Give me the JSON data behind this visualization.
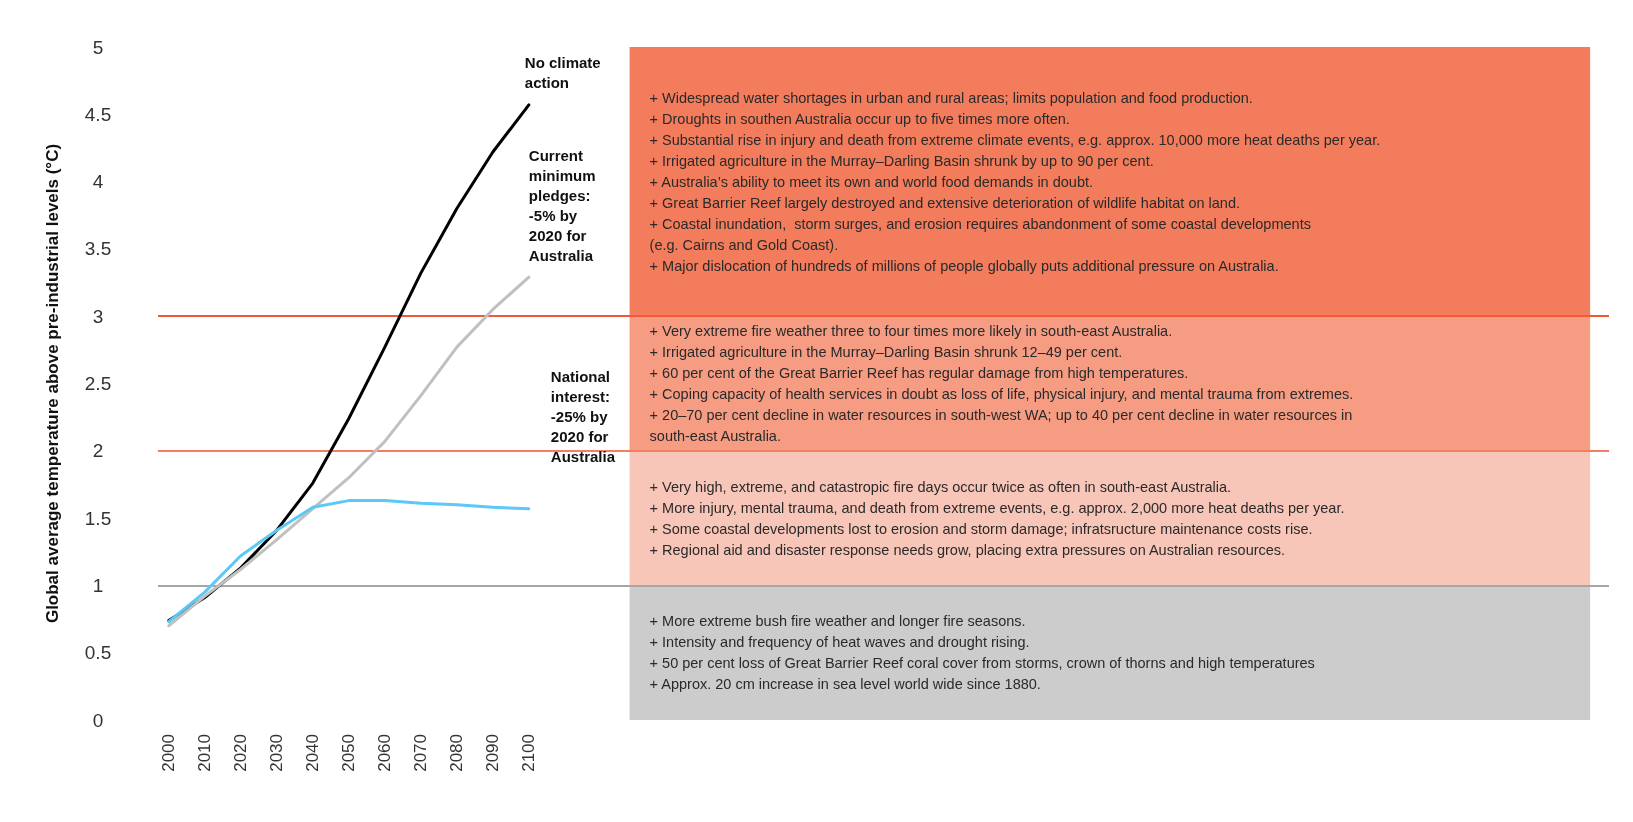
{
  "chart_data": {
    "type": "line",
    "ylabel": "Global average temperature above pre-industrial levels (°C)",
    "x": [
      2000,
      2010,
      2020,
      2030,
      2040,
      2050,
      2060,
      2070,
      2080,
      2090,
      2100
    ],
    "xlim": [
      1997,
      2400
    ],
    "xticks": [
      2000,
      2010,
      2020,
      2030,
      2040,
      2050,
      2060,
      2070,
      2080,
      2090,
      2100
    ],
    "ylim": [
      0,
      5
    ],
    "yticks": [
      0,
      0.5,
      1,
      1.5,
      2,
      2.5,
      3,
      3.5,
      4,
      4.5,
      5
    ],
    "grid": false,
    "marker": "none",
    "line_style": "solid",
    "series": [
      {
        "name": "No climate action",
        "color": "#000000",
        "values": [
          0.74,
          0.91,
          1.13,
          1.41,
          1.76,
          2.24,
          2.77,
          3.32,
          3.8,
          4.22,
          4.57
        ]
      },
      {
        "name": "Current minimum pledges: -5% by 2020 for Australia",
        "color": "#c0c0c0",
        "values": [
          0.7,
          0.92,
          1.12,
          1.34,
          1.57,
          1.8,
          2.07,
          2.41,
          2.77,
          3.05,
          3.29
        ]
      },
      {
        "name": "National interest: -25% by 2020 for Australia",
        "color": "#5bc8f5",
        "values": [
          0.73,
          0.95,
          1.22,
          1.41,
          1.58,
          1.63,
          1.63,
          1.61,
          1.6,
          1.58,
          1.57
        ]
      }
    ],
    "ref_lines": [
      {
        "axis": "y",
        "value": 3,
        "color": "#f05a38"
      },
      {
        "axis": "y",
        "value": 2,
        "color": "#f47e63"
      },
      {
        "axis": "y",
        "value": 1,
        "color": "#a6a6a6"
      }
    ],
    "bands": [
      {
        "axis": "y",
        "from": 3,
        "to": 5,
        "color": "#f37c5c",
        "label": "+ Widespread water shortages in urban and rural areas; limits population and food production.\n+ Droughts in southen Australia occur up to five times more often.\n+ Substantial rise in injury and death from extreme climate events, e.g. approx. 10,000 more heat deaths per year.\n+ Irrigated agriculture in the Murray–Darling Basin shrunk by up to 90 per cent.\n+ Australia’s ability to meet its own and world food demands in doubt.\n+ Great Barrier Reef largely destroyed and extensive deterioration of wildlife habitat on land.\n+ Coastal inundation,  storm surges, and erosion requires abandonment of some coastal developments\n(e.g. Cairns and Gold Coast).\n+ Major dislocation of hundreds of millions of people globally puts additional pressure on Australia."
      },
      {
        "axis": "y",
        "from": 2,
        "to": 3,
        "color": "#f59c83",
        "label": "+ Very extreme fire weather three to four times more likely in south-east Australia.\n+ Irrigated agriculture in the Murray–Darling Basin shrunk 12–49 per cent.\n+ 60 per cent of the Great Barrier Reef has regular damage from high temperatures.\n+ Coping capacity of health services in doubt as loss of life, physical injury, and mental trauma from extremes.\n+ 20–70 per cent decline in water resources in south-west WA; up to 40 per cent decline in water resources in\nsouth-east Australia."
      },
      {
        "axis": "y",
        "from": 1,
        "to": 2,
        "color": "#f7c6b8",
        "label": "+ Very high, extreme, and catastropic fire days occur twice as often in south-east Australia.\n+ More injury, mental trauma, and death from extreme events, e.g. approx. 2,000 more heat deaths per year.\n+ Some coastal developments lost to erosion and storm damage; infratsructure maintenance costs rise.\n+ Regional aid and disaster response needs grow, placing extra pressures on Australian resources."
      },
      {
        "axis": "y",
        "from": 0,
        "to": 1,
        "color": "#cccccc",
        "label": "+ More extreme bush fire weather and longer fire seasons.\n+ Intensity and frequency of heat waves and drought rising.\n+ 50 per cent loss of Great Barrier Reef coral cover from storms, crown of thorns and high temperatures\n+ Approx. 20 cm increase in sea level world wide since 1880."
      }
    ]
  }
}
